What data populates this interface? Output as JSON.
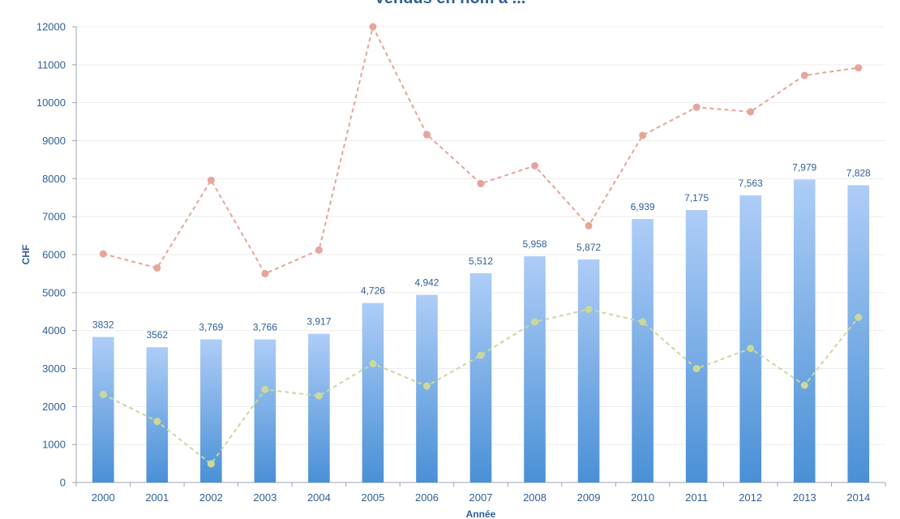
{
  "chart_data": {
    "type": "bar",
    "title": "Vendus en nom à ...",
    "xlabel": "Année",
    "ylabel": "CHF",
    "ylim": [
      0,
      12000
    ],
    "yticks": [
      0,
      1000,
      2000,
      3000,
      4000,
      5000,
      6000,
      7000,
      8000,
      9000,
      10000,
      11000,
      12000
    ],
    "categories": [
      "2000",
      "2001",
      "2002",
      "2003",
      "2004",
      "2005",
      "2006",
      "2007",
      "2008",
      "2009",
      "2010",
      "2011",
      "2012",
      "2013",
      "2014"
    ],
    "grid": true,
    "legend": "none",
    "series": [
      {
        "type": "bar",
        "color": "#5b9bd5",
        "values": [
          3832,
          3562,
          3769,
          3766,
          3917,
          4726,
          4942,
          5512,
          5958,
          5872,
          6939,
          7175,
          7563,
          7979,
          7828
        ],
        "labels": [
          "3832",
          "3562",
          "3,769",
          "3,766",
          "3,917",
          "4,726",
          "4,942",
          "5,512",
          "5,958",
          "5,872",
          "6,939",
          "7,175",
          "7,563",
          "7,979",
          "7,828"
        ]
      },
      {
        "type": "line",
        "color": "#e6a49a",
        "style": "dashed",
        "values": [
          6020,
          5650,
          7960,
          5500,
          6120,
          12000,
          9160,
          7870,
          8340,
          6760,
          9140,
          9880,
          9760,
          10720,
          10920
        ]
      },
      {
        "type": "line",
        "color": "#c9d99a",
        "style": "dashed",
        "values": [
          2320,
          1610,
          490,
          2450,
          2280,
          3130,
          2540,
          3350,
          4230,
          4560,
          4230,
          3000,
          3530,
          2560,
          4350
        ]
      }
    ]
  }
}
